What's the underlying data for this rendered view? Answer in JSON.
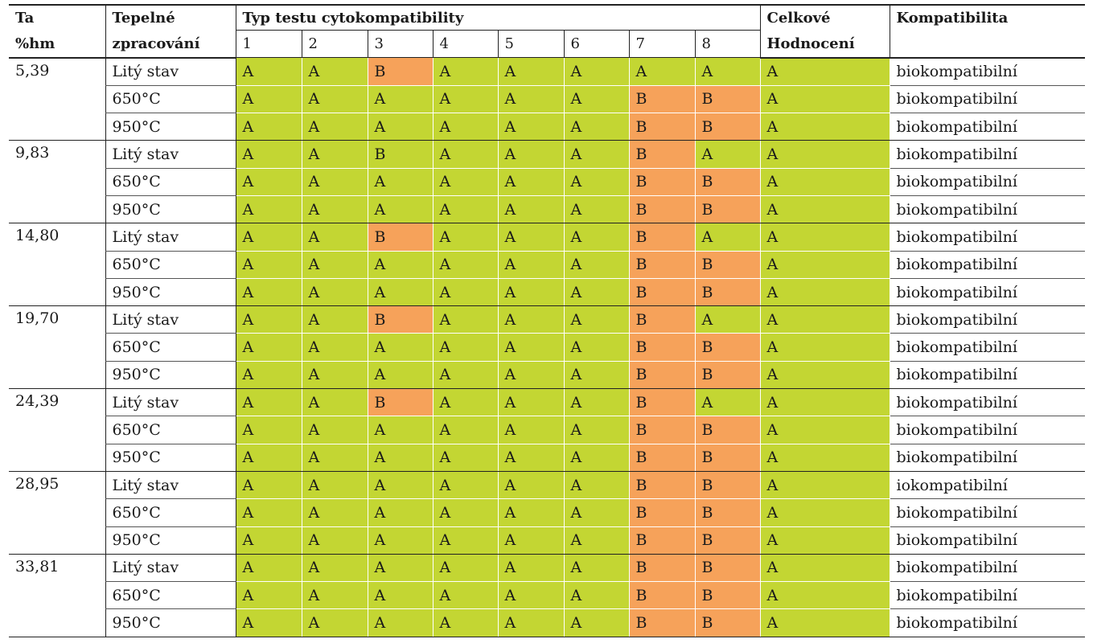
{
  "table": {
    "header": {
      "col_ta_line1": "Ta",
      "col_ta_line2": "%hm",
      "col_heat_line1": "Tepelné",
      "col_heat_line2": "zpracování",
      "col_test_group": "Typ testu cytokompatibility",
      "test_numbers": [
        "1",
        "2",
        "3",
        "4",
        "5",
        "6",
        "7",
        "8"
      ],
      "col_overall_line1": "Celkové",
      "col_overall_line2": "Hodnocení",
      "col_compat": "Kompatibilita"
    },
    "colors": {
      "A": "#c3d633",
      "B": "#f6a25a"
    },
    "groups": [
      {
        "ta": "5,39",
        "rows": [
          {
            "heat": "Litý stav",
            "tests": [
              "A",
              "A",
              "B",
              "A",
              "A",
              "A",
              "A",
              "A"
            ],
            "overall": "A",
            "compat": "biokompatibilní"
          },
          {
            "heat": "650°C",
            "tests": [
              "A",
              "A",
              "A",
              "A",
              "A",
              "A",
              "B",
              "B"
            ],
            "overall": "A",
            "compat": "biokompatibilní"
          },
          {
            "heat": "950°C",
            "tests": [
              "A",
              "A",
              "A",
              "A",
              "A",
              "A",
              "B",
              "B"
            ],
            "overall": "A",
            "compat": "biokompatibilní"
          }
        ]
      },
      {
        "ta": "9,83",
        "rows": [
          {
            "heat": "Litý stav",
            "tests": [
              "A",
              "A",
              "B",
              "A",
              "A",
              "A",
              "B",
              "A"
            ],
            "overall": "A",
            "compat": "biokompatibilní",
            "cell3_green": true
          },
          {
            "heat": "650°C",
            "tests": [
              "A",
              "A",
              "A",
              "A",
              "A",
              "A",
              "B",
              "B"
            ],
            "overall": "A",
            "compat": "biokompatibilní"
          },
          {
            "heat": "950°C",
            "tests": [
              "A",
              "A",
              "A",
              "A",
              "A",
              "A",
              "B",
              "B"
            ],
            "overall": "A",
            "compat": "biokompatibilní"
          }
        ]
      },
      {
        "ta": "14,80",
        "rows": [
          {
            "heat": "Litý stav",
            "tests": [
              "A",
              "A",
              "B",
              "A",
              "A",
              "A",
              "B",
              "A"
            ],
            "overall": "A",
            "compat": "biokompatibilní"
          },
          {
            "heat": "650°C",
            "tests": [
              "A",
              "A",
              "A",
              "A",
              "A",
              "A",
              "B",
              "B"
            ],
            "overall": "A",
            "compat": "biokompatibilní"
          },
          {
            "heat": "950°C",
            "tests": [
              "A",
              "A",
              "A",
              "A",
              "A",
              "A",
              "B",
              "B"
            ],
            "overall": "A",
            "compat": "biokompatibilní"
          }
        ]
      },
      {
        "ta": "19,70",
        "rows": [
          {
            "heat": "Litý stav",
            "tests": [
              "A",
              "A",
              "B",
              "A",
              "A",
              "A",
              "B",
              "A"
            ],
            "overall": "A",
            "compat": "biokompatibilní"
          },
          {
            "heat": "650°C",
            "tests": [
              "A",
              "A",
              "A",
              "A",
              "A",
              "A",
              "B",
              "B"
            ],
            "overall": "A",
            "compat": "biokompatibilní"
          },
          {
            "heat": "950°C",
            "tests": [
              "A",
              "A",
              "A",
              "A",
              "A",
              "A",
              "B",
              "B"
            ],
            "overall": "A",
            "compat": "biokompatibilní"
          }
        ]
      },
      {
        "ta": "24,39",
        "rows": [
          {
            "heat": "Litý stav",
            "tests": [
              "A",
              "A",
              "B",
              "A",
              "A",
              "A",
              "B",
              "A"
            ],
            "overall": "A",
            "compat": "biokompatibilní"
          },
          {
            "heat": "650°C",
            "tests": [
              "A",
              "A",
              "A",
              "A",
              "A",
              "A",
              "B",
              "B"
            ],
            "overall": "A",
            "compat": "biokompatibilní"
          },
          {
            "heat": "950°C",
            "tests": [
              "A",
              "A",
              "A",
              "A",
              "A",
              "A",
              "B",
              "B"
            ],
            "overall": "A",
            "compat": "biokompatibilní"
          }
        ]
      },
      {
        "ta": "28,95",
        "rows": [
          {
            "heat": "Litý stav",
            "tests": [
              "A",
              "A",
              "A",
              "A",
              "A",
              "A",
              "B",
              "B"
            ],
            "overall": "A",
            "compat": "iokompatibilní"
          },
          {
            "heat": "650°C",
            "tests": [
              "A",
              "A",
              "A",
              "A",
              "A",
              "A",
              "B",
              "B"
            ],
            "overall": "A",
            "compat": "biokompatibilní"
          },
          {
            "heat": "950°C",
            "tests": [
              "A",
              "A",
              "A",
              "A",
              "A",
              "A",
              "B",
              "B"
            ],
            "overall": "A",
            "compat": "biokompatibilní"
          }
        ]
      },
      {
        "ta": "33,81",
        "rows": [
          {
            "heat": "Litý stav",
            "tests": [
              "A",
              "A",
              "A",
              "A",
              "A",
              "A",
              "B",
              "B"
            ],
            "overall": "A",
            "compat": "biokompatibilní"
          },
          {
            "heat": "650°C",
            "tests": [
              "A",
              "A",
              "A",
              "A",
              "A",
              "A",
              "B",
              "B"
            ],
            "overall": "A",
            "compat": "biokompatibilní"
          },
          {
            "heat": "950°C",
            "tests": [
              "A",
              "A",
              "A",
              "A",
              "A",
              "A",
              "B",
              "B"
            ],
            "overall": "A",
            "compat": "biokompatibilní"
          }
        ]
      }
    ]
  }
}
